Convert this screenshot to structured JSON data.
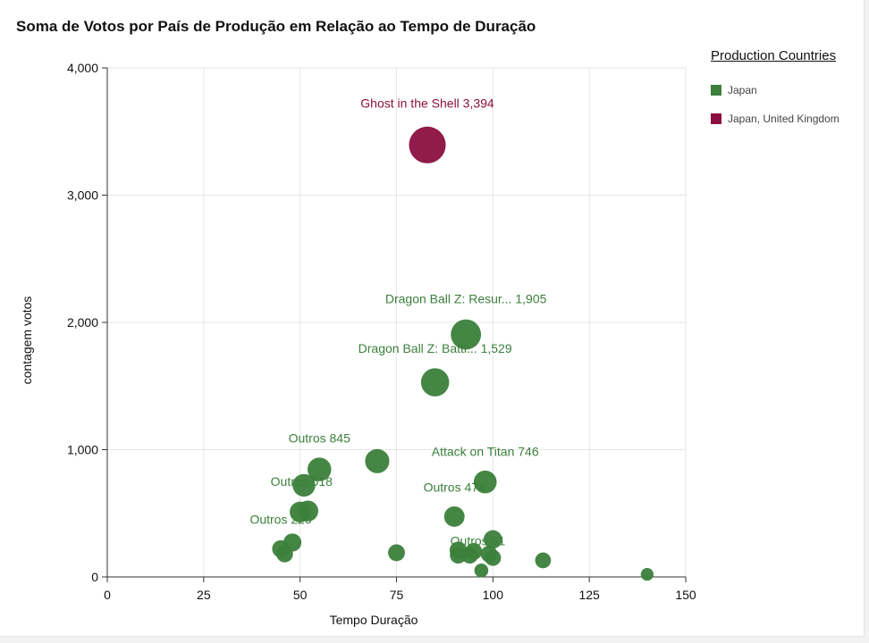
{
  "colors": {
    "japan": "#3b7f3b",
    "japan_uk": "#8b0f40",
    "grid": "#e6e6e6",
    "axis": "#333333"
  },
  "chart_data": {
    "type": "scatter",
    "title": "Soma de Votos por País de Produção em Relação ao Tempo de Duração",
    "xlabel": "Tempo Duração",
    "ylabel": "contagem votos",
    "xlim": [
      0,
      150
    ],
    "ylim": [
      0,
      4000
    ],
    "x_ticks": [
      0,
      25,
      50,
      75,
      100,
      125,
      150
    ],
    "x_tick_labels": [
      "0",
      "25",
      "50",
      "75",
      "100",
      "125",
      "150"
    ],
    "y_ticks": [
      0,
      1000,
      2000,
      3000,
      4000
    ],
    "y_tick_labels": [
      "0",
      "1,000",
      "2,000",
      "3,000",
      "4,000"
    ],
    "grid": true,
    "legend_position": "right",
    "legend": {
      "title": "Production Countries",
      "items": [
        "Japan",
        "Japan, United Kingdom"
      ]
    },
    "series": [
      {
        "name": "Japan",
        "color": "#3b7f3b",
        "points": [
          {
            "x": 93,
            "y": 1905
          },
          {
            "x": 85,
            "y": 1529
          },
          {
            "x": 70,
            "y": 910
          },
          {
            "x": 55,
            "y": 845
          },
          {
            "x": 98,
            "y": 746
          },
          {
            "x": 51,
            "y": 720
          },
          {
            "x": 52,
            "y": 518
          },
          {
            "x": 50,
            "y": 510
          },
          {
            "x": 90,
            "y": 474
          },
          {
            "x": 100,
            "y": 295
          },
          {
            "x": 48,
            "y": 270
          },
          {
            "x": 45,
            "y": 220
          },
          {
            "x": 46,
            "y": 180
          },
          {
            "x": 75,
            "y": 190
          },
          {
            "x": 91,
            "y": 210
          },
          {
            "x": 91,
            "y": 170
          },
          {
            "x": 94,
            "y": 170
          },
          {
            "x": 95,
            "y": 200
          },
          {
            "x": 99,
            "y": 180
          },
          {
            "x": 100,
            "y": 150
          },
          {
            "x": 113,
            "y": 130
          },
          {
            "x": 97,
            "y": 51
          },
          {
            "x": 140,
            "y": 20
          }
        ]
      },
      {
        "name": "Japan, United Kingdom",
        "color": "#8b0f40",
        "points": [
          {
            "x": 83,
            "y": 3394
          }
        ]
      }
    ],
    "annotations": [
      {
        "text": "Ghost in the Shell 3,394",
        "x": 83,
        "y": 3394,
        "dx": 0,
        "dy": -42,
        "series": "Japan, United Kingdom"
      },
      {
        "text": "Dragon Ball Z: Resur... 1,905",
        "x": 93,
        "y": 1905,
        "dx": 0,
        "dy": -35,
        "series": "Japan"
      },
      {
        "text": "Dragon Ball Z: Battl... 1,529",
        "x": 85,
        "y": 1529,
        "dx": 0,
        "dy": -33,
        "series": "Japan"
      },
      {
        "text": "Outros 845",
        "x": 55,
        "y": 845,
        "dx": 0,
        "dy": -30,
        "series": "Japan"
      },
      {
        "text": "Attack on Titan 746",
        "x": 98,
        "y": 746,
        "dx": 0,
        "dy": -29,
        "series": "Japan"
      },
      {
        "text": "Outros 518",
        "x": 52,
        "y": 518,
        "dx": -7,
        "dy": -28,
        "series": "Japan"
      },
      {
        "text": "Outros 474",
        "x": 90,
        "y": 474,
        "dx": 0,
        "dy": -28,
        "series": "Japan"
      },
      {
        "text": "Outros 220",
        "x": 45,
        "y": 220,
        "dx": 0,
        "dy": -28,
        "series": "Japan"
      },
      {
        "text": "Outros 51",
        "x": 97,
        "y": 51,
        "dx": -4,
        "dy": -28,
        "series": "Japan"
      }
    ]
  }
}
